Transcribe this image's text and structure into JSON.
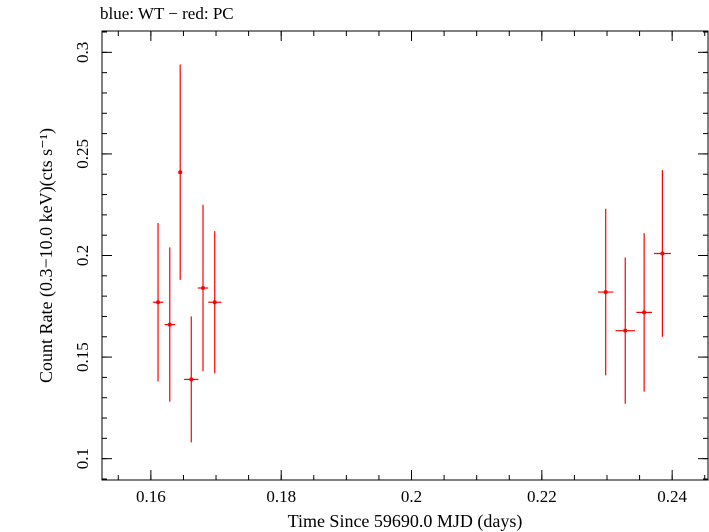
{
  "chart_data": {
    "type": "scatter",
    "title": "blue: WT − red: PC",
    "xlabel": "Time Since 59690.0 MJD (days)",
    "ylabel": "Count Rate (0.3−10.0 keV)(cts s⁻¹)",
    "xlim": [
      0.1525,
      0.2455
    ],
    "ylim": [
      0.0895,
      0.3105
    ],
    "xticks": [
      0.16,
      0.18,
      0.2,
      0.22,
      0.24
    ],
    "xtick_labels": [
      "0.16",
      "0.18",
      "0.2",
      "0.22",
      "0.24"
    ],
    "yticks": [
      0.1,
      0.15,
      0.2,
      0.25,
      0.3
    ],
    "ytick_labels": [
      "0.1",
      "0.15",
      "0.2",
      "0.25",
      "0.3"
    ],
    "grid": false,
    "series": [
      {
        "color": "#ff0000",
        "points": [
          {
            "x": 0.1611,
            "y": 0.177,
            "xerr": 0.0008,
            "yerr_lo": 0.039,
            "yerr_hi": 0.039
          },
          {
            "x": 0.1629,
            "y": 0.166,
            "xerr": 0.0008,
            "yerr_lo": 0.038,
            "yerr_hi": 0.038
          },
          {
            "x": 0.1645,
            "y": 0.241,
            "xerr": 0.0003,
            "yerr_lo": 0.053,
            "yerr_hi": 0.053
          },
          {
            "x": 0.1662,
            "y": 0.139,
            "xerr": 0.0011,
            "yerr_lo": 0.031,
            "yerr_hi": 0.031
          },
          {
            "x": 0.168,
            "y": 0.184,
            "xerr": 0.0008,
            "yerr_lo": 0.041,
            "yerr_hi": 0.041
          },
          {
            "x": 0.1698,
            "y": 0.177,
            "xerr": 0.001,
            "yerr_lo": 0.035,
            "yerr_hi": 0.035
          },
          {
            "x": 0.2298,
            "y": 0.182,
            "xerr": 0.0012,
            "yerr_lo": 0.041,
            "yerr_hi": 0.041
          },
          {
            "x": 0.2328,
            "y": 0.163,
            "xerr": 0.0015,
            "yerr_lo": 0.036,
            "yerr_hi": 0.036
          },
          {
            "x": 0.2357,
            "y": 0.172,
            "xerr": 0.0012,
            "yerr_lo": 0.039,
            "yerr_hi": 0.039
          },
          {
            "x": 0.2385,
            "y": 0.201,
            "xerr": 0.0013,
            "yerr_lo": 0.041,
            "yerr_hi": 0.041
          }
        ]
      }
    ]
  }
}
